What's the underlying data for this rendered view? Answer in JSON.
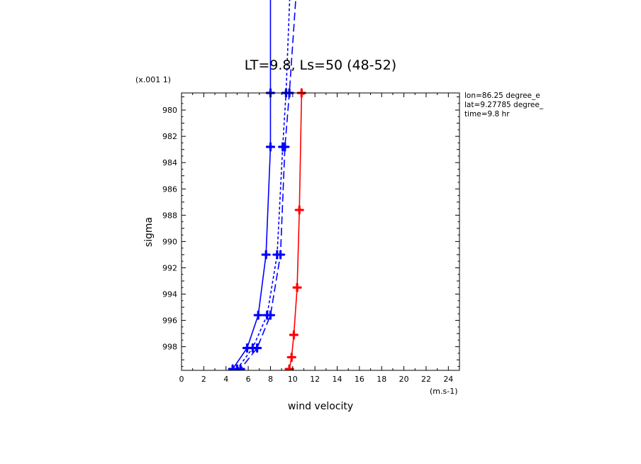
{
  "chart_data": {
    "type": "line",
    "title": "LT=9.8, Ls=50 (48-52)",
    "xlabel": "wind velocity",
    "ylabel": "sigma",
    "x_unit_label": "(m.s-1)",
    "y_scale_label": "(x.001 1)",
    "xlim": [
      0,
      25
    ],
    "ylim": [
      999.8,
      978.7
    ],
    "y_inverted": true,
    "x_ticks": [
      0,
      2,
      4,
      6,
      8,
      10,
      12,
      14,
      16,
      18,
      20,
      22,
      24
    ],
    "y_ticks": [
      980,
      982,
      984,
      986,
      988,
      990,
      992,
      994,
      996,
      998
    ],
    "annotations": [
      "lon=86.25 degree_e",
      "lat=9.27785 degree_",
      "time=9.8 hr"
    ],
    "series": [
      {
        "style": "solid",
        "color": "#0000ff",
        "points": [
          [
            8.0,
            970.0
          ],
          [
            8.0,
            978.7
          ],
          [
            8.0,
            982.8
          ],
          [
            7.6,
            991.0
          ],
          [
            6.9,
            995.6
          ],
          [
            5.9,
            998.1
          ],
          [
            4.6,
            999.7
          ]
        ]
      },
      {
        "style": "dashed",
        "color": "#0000ff",
        "points": [
          [
            9.8,
            970.0
          ],
          [
            9.4,
            978.7
          ],
          [
            9.1,
            982.8
          ],
          [
            8.6,
            991.0
          ],
          [
            7.7,
            995.6
          ],
          [
            6.4,
            998.1
          ],
          [
            5.0,
            999.7
          ]
        ]
      },
      {
        "style": "longdash",
        "color": "#0000ff",
        "points": [
          [
            10.4,
            970.0
          ],
          [
            9.7,
            978.7
          ],
          [
            9.3,
            982.8
          ],
          [
            8.9,
            991.0
          ],
          [
            8.0,
            995.6
          ],
          [
            6.8,
            998.1
          ],
          [
            5.3,
            999.7
          ]
        ]
      },
      {
        "style": "solid",
        "color": "#ff0000",
        "points": [
          [
            10.8,
            978.7
          ],
          [
            10.6,
            987.6
          ],
          [
            10.4,
            993.5
          ],
          [
            10.1,
            997.1
          ],
          [
            9.9,
            998.8
          ],
          [
            9.7,
            999.7
          ]
        ]
      }
    ]
  }
}
